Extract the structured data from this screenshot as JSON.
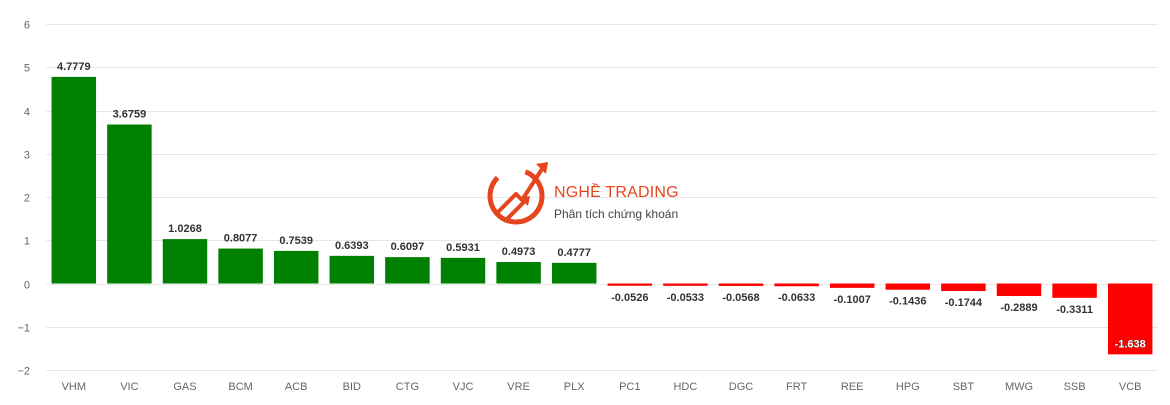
{
  "watermark": {
    "brand": "NGHỀ TRADING",
    "tagline": "Phân tích chứng khoán",
    "color": "#e5461d"
  },
  "colors": {
    "positive": "#008000",
    "negative": "#ff0000",
    "grid": "#e6e6e6",
    "axis_text": "#666666",
    "label_text": "#333333"
  },
  "chart_data": {
    "type": "bar",
    "title": "",
    "xlabel": "",
    "ylabel": "",
    "ylim": [
      -2,
      6
    ],
    "yticks": [
      -2,
      -1,
      0,
      1,
      2,
      3,
      4,
      5,
      6
    ],
    "grid": true,
    "categories": [
      "VHM",
      "VIC",
      "GAS",
      "BCM",
      "ACB",
      "BID",
      "CTG",
      "VJC",
      "VRE",
      "PLX",
      "PC1",
      "HDC",
      "DGC",
      "FRT",
      "REE",
      "HPG",
      "SBT",
      "MWG",
      "SSB",
      "VCB"
    ],
    "values": [
      4.7779,
      3.6759,
      1.0268,
      0.8077,
      0.7539,
      0.6393,
      0.6097,
      0.5931,
      0.4973,
      0.4777,
      -0.0526,
      -0.0533,
      -0.0568,
      -0.0633,
      -0.1007,
      -0.1436,
      -0.1744,
      -0.2889,
      -0.3311,
      -1.638
    ],
    "labels": [
      "4.7779",
      "3.6759",
      "1.0268",
      "0.8077",
      "0.7539",
      "0.6393",
      "0.6097",
      "0.5931",
      "0.4973",
      "0.4777",
      "-0.0526",
      "-0.0533",
      "-0.0568",
      "-0.0633",
      "-0.1007",
      "-0.1436",
      "-0.1744",
      "-0.2889",
      "-0.3311",
      "-1.638"
    ]
  }
}
